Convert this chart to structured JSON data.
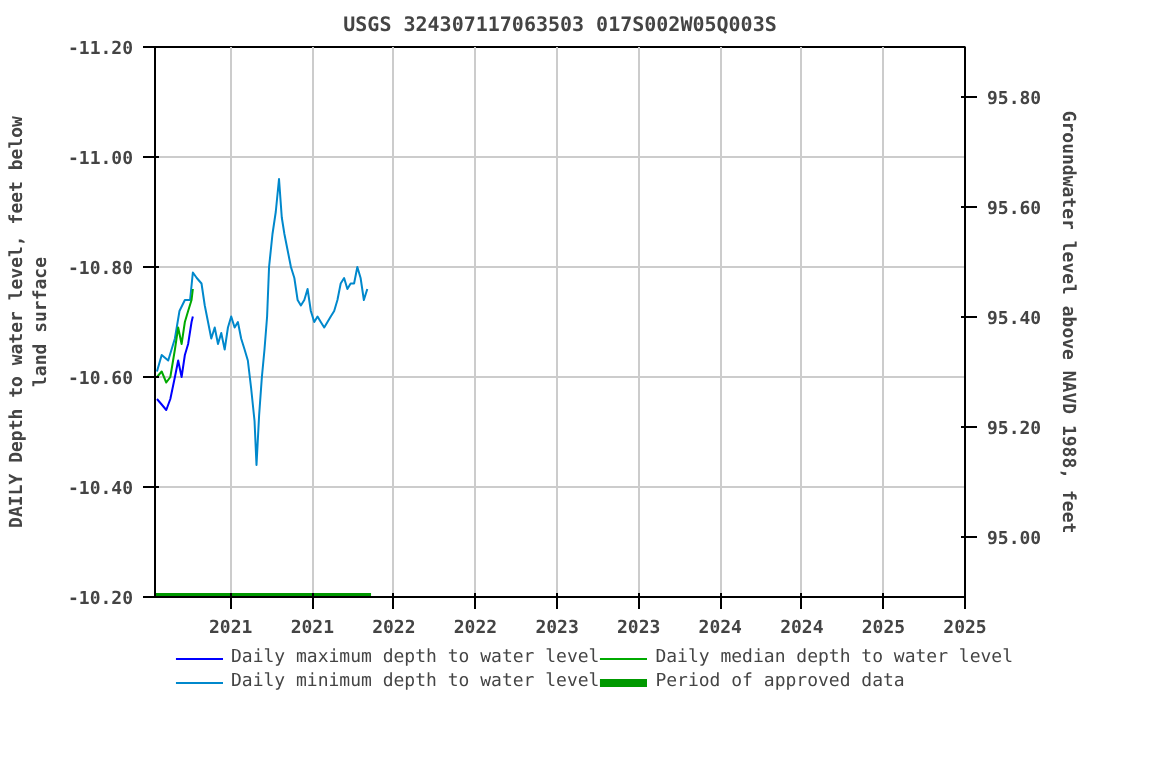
{
  "chart_data": {
    "type": "line",
    "title": "USGS 324307117063503 017S002W05Q003S",
    "ylabel": "DAILY Depth to water level, feet below\nland surface",
    "y2label": "Groundwater level above NAVD 1988, feet",
    "xlim": [
      2020.536,
      2025.5
    ],
    "xticks": [
      {
        "value": 2021.0,
        "label": "2021"
      },
      {
        "value": 2021.5,
        "label": "2021"
      },
      {
        "value": 2022.0,
        "label": "2022"
      },
      {
        "value": 2022.5,
        "label": "2022"
      },
      {
        "value": 2023.0,
        "label": "2023"
      },
      {
        "value": 2023.5,
        "label": "2023"
      },
      {
        "value": 2024.0,
        "label": "2024"
      },
      {
        "value": 2024.5,
        "label": "2024"
      },
      {
        "value": 2025.0,
        "label": "2025"
      },
      {
        "value": 2025.5,
        "label": "2025"
      }
    ],
    "ylim": [
      -10.2,
      -11.2
    ],
    "yticks": [
      {
        "value": -11.2,
        "label": "-11.20"
      },
      {
        "value": -11.0,
        "label": "-11.00"
      },
      {
        "value": -10.8,
        "label": "-10.80"
      },
      {
        "value": -10.6,
        "label": "-10.60"
      },
      {
        "value": -10.4,
        "label": "-10.40"
      },
      {
        "value": -10.2,
        "label": "-10.20"
      }
    ],
    "y2lim": [
      94.89,
      95.89
    ],
    "y2ticks": [
      {
        "value": 95.0,
        "label": "95.00"
      },
      {
        "value": 95.2,
        "label": "95.20"
      },
      {
        "value": 95.4,
        "label": "95.40"
      },
      {
        "value": 95.6,
        "label": "95.60"
      },
      {
        "value": 95.8,
        "label": "95.80"
      }
    ],
    "grid": true,
    "legend": "bottom",
    "series": [
      {
        "name": "Daily maximum depth to water level",
        "color": "#0000ff",
        "x": [
          2020.548,
          2020.577,
          2020.605,
          2020.63,
          2020.658,
          2020.678,
          2020.699,
          2020.719,
          2020.739,
          2020.76,
          2020.768
        ],
        "values": [
          -10.56,
          -10.55,
          -10.54,
          -10.56,
          -10.6,
          -10.63,
          -10.6,
          -10.64,
          -10.66,
          -10.7,
          -10.71
        ]
      },
      {
        "name": "Daily minimum depth to water level",
        "color": "#0088cc",
        "x": [
          2020.548,
          2020.577,
          2020.617,
          2020.658,
          2020.686,
          2020.719,
          2020.751,
          2020.768,
          2020.792,
          2020.821,
          2020.841,
          2020.861,
          2020.881,
          2020.902,
          2020.922,
          2020.942,
          2020.963,
          2020.983,
          2021.003,
          2021.024,
          2021.044,
          2021.064,
          2021.085,
          2021.105,
          2021.125,
          2021.146,
          2021.158,
          2021.174,
          2021.191,
          2021.207,
          2021.223,
          2021.235,
          2021.256,
          2021.276,
          2021.296,
          2021.313,
          2021.329,
          2021.349,
          2021.369,
          2021.39,
          2021.41,
          2021.43,
          2021.451,
          2021.471,
          2021.491,
          2021.512,
          2021.532,
          2021.552,
          2021.573,
          2021.593,
          2021.613,
          2021.634,
          2021.654,
          2021.674,
          2021.695,
          2021.715,
          2021.735,
          2021.756,
          2021.776,
          2021.796,
          2021.816,
          2021.837
        ],
        "values": [
          -10.61,
          -10.64,
          -10.63,
          -10.67,
          -10.72,
          -10.74,
          -10.74,
          -10.79,
          -10.78,
          -10.77,
          -10.73,
          -10.7,
          -10.67,
          -10.69,
          -10.66,
          -10.68,
          -10.65,
          -10.69,
          -10.71,
          -10.69,
          -10.7,
          -10.67,
          -10.65,
          -10.63,
          -10.58,
          -10.52,
          -10.44,
          -10.53,
          -10.6,
          -10.65,
          -10.71,
          -10.8,
          -10.86,
          -10.9,
          -10.96,
          -10.89,
          -10.86,
          -10.83,
          -10.8,
          -10.78,
          -10.74,
          -10.73,
          -10.74,
          -10.76,
          -10.72,
          -10.7,
          -10.71,
          -10.7,
          -10.69,
          -10.7,
          -10.71,
          -10.72,
          -10.74,
          -10.77,
          -10.78,
          -10.76,
          -10.77,
          -10.77,
          -10.8,
          -10.78,
          -10.74,
          -10.76
        ]
      },
      {
        "name": "Daily median depth to water level",
        "color": "#00aa00",
        "x": [
          2020.548,
          2020.577,
          2020.605,
          2020.63,
          2020.658,
          2020.678,
          2020.699,
          2020.719,
          2020.739,
          2020.76,
          2020.768
        ],
        "values": [
          -10.6,
          -10.61,
          -10.59,
          -10.6,
          -10.65,
          -10.69,
          -10.66,
          -10.7,
          -10.72,
          -10.74,
          -10.76
        ]
      },
      {
        "name": "Period of approved data",
        "color": "#009900",
        "x": [
          2020.536,
          2021.86
        ],
        "values": [
          -10.2,
          -10.2
        ]
      }
    ]
  }
}
